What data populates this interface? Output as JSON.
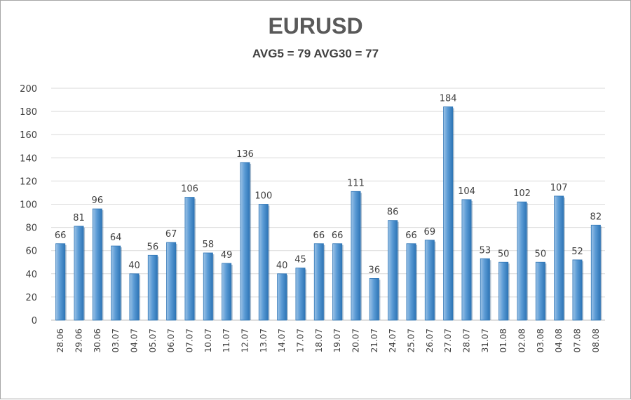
{
  "chart_data": {
    "type": "bar",
    "title": "EURUSD",
    "subtitle": "AVG5 = 79 AVG30 = 77",
    "xlabel": "",
    "ylabel": "",
    "ylim": [
      0,
      200
    ],
    "yticks": [
      0,
      20,
      40,
      60,
      80,
      100,
      120,
      140,
      160,
      180,
      200
    ],
    "grid": true,
    "legend": "none",
    "categories": [
      "28.06",
      "29.06",
      "30.06",
      "03.07",
      "04.07",
      "05.07",
      "06.07",
      "07.07",
      "10.07",
      "11.07",
      "12.07",
      "13.07",
      "14.07",
      "17.07",
      "18.07",
      "19.07",
      "20.07",
      "21.07",
      "24.07",
      "25.07",
      "26.07",
      "27.07",
      "28.07",
      "31.07",
      "01.08",
      "02.08",
      "03.08",
      "04.08",
      "07.08",
      "08.08"
    ],
    "values": [
      66,
      81,
      96,
      64,
      40,
      56,
      67,
      106,
      58,
      49,
      136,
      100,
      40,
      45,
      66,
      66,
      111,
      36,
      86,
      66,
      69,
      184,
      104,
      53,
      50,
      102,
      50,
      107,
      52,
      82
    ],
    "colors": {
      "bar": "#5b9bd5",
      "bar_light": "#9dc3e6",
      "bar_dark": "#2e75b6",
      "grid": "#d9d9d9",
      "text": "#404040"
    }
  }
}
